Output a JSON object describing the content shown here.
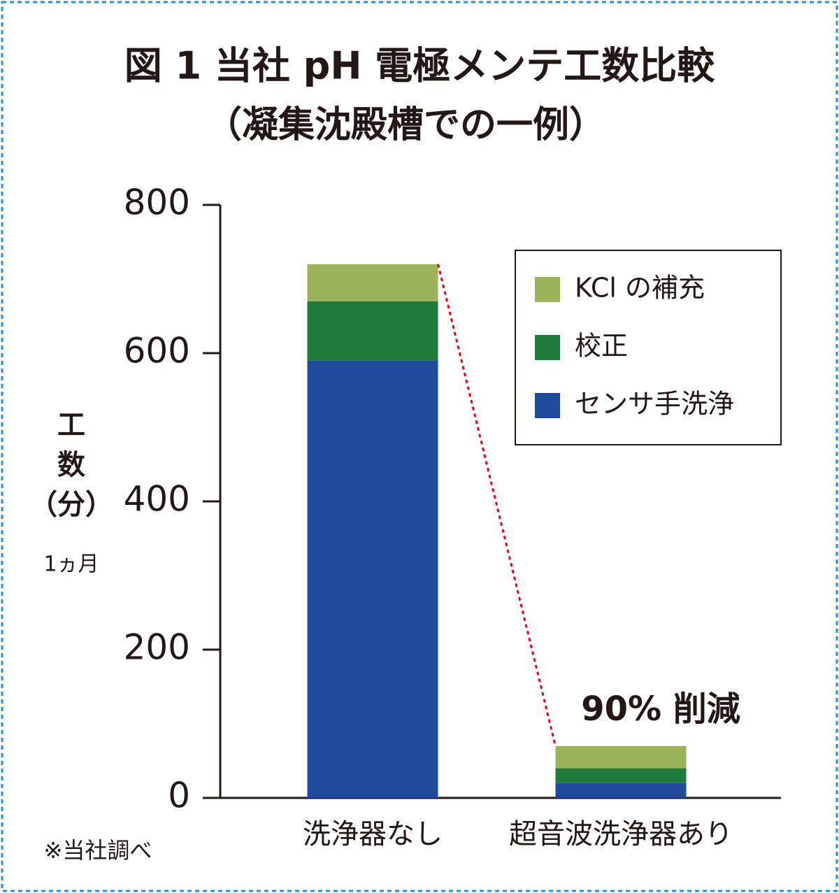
{
  "chart_data": {
    "type": "bar",
    "stacked": true,
    "title": "図 1 当社 pH 電極メンテ工数比較",
    "subtitle": "（凝集沈殿槽での一例）",
    "ylabel": [
      "工",
      "数",
      "（分）"
    ],
    "ylabel_note": "1ヵ月",
    "categories": [
      "洗浄器なし",
      "超音波洗浄器あり"
    ],
    "series": [
      {
        "name": "センサ手洗浄",
        "color": "#1f4b9c",
        "values": [
          590,
          20
        ]
      },
      {
        "name": "校正",
        "color": "#1e7b3b",
        "values": [
          80,
          20
        ]
      },
      {
        "name": "KCl の補充",
        "color": "#9bb45b",
        "values": [
          50,
          30
        ]
      }
    ],
    "ylim": [
      0,
      800
    ],
    "yticks": [
      0,
      200,
      400,
      600,
      800
    ],
    "annotation": "90% 削減",
    "annotation_color": "#e60012",
    "footnote": "※当社調べ",
    "legend": "upper right"
  }
}
